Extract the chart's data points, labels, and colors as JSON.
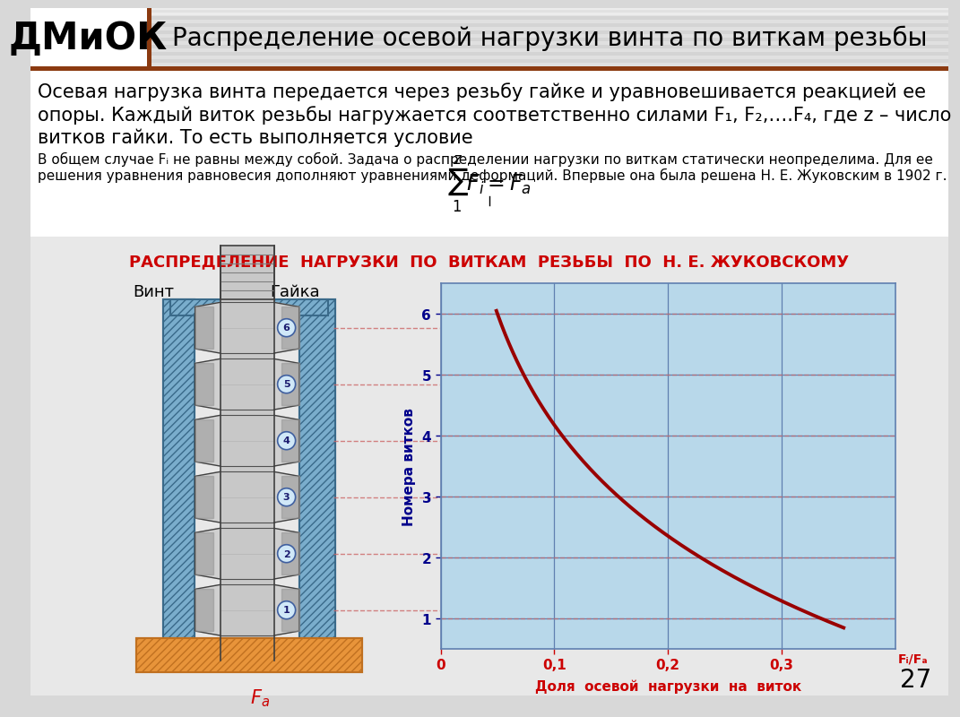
{
  "title_logo": "ДМиОК",
  "title_main": "Распределение осевой нагрузки винта по виткам резьбы",
  "text_large_line1": "Осевая нагрузка винта передается через резьбу гайке и уравновешивается реакцией ее",
  "text_large_line2": "опоры. Каждый виток резьбы нагружается соответственно силами F₁, F₂,….F₄, где z – число",
  "text_large_line3": "витков гайки. То есть выполняется условие",
  "text_small_line1": "В общем случае Fᵢ не равны между собой. Задача о распределении нагрузки по виткам статически неопределима. Для ее",
  "text_small_line2": "решения уравнения равновесия дополняют уравнениями деформаций. Впервые она была решена Н. Е. Жуковским в 1902 г.",
  "diagram_title": "РАСПРЕДЕЛЕНИЕ  НАГРУЗКИ  ПО  ВИТКАМ  РЕЗЬБЫ  ПО  Н. Е. ЖУКОВСКОМУ",
  "diagram_title_color": "#cc0000",
  "graph_bg": "#b8d8ea",
  "curve_color": "#990000",
  "xlabel": "Доля  осевой  нагрузки  на  виток",
  "ylabel": "Номера витков",
  "xlabel_color": "#cc0000",
  "xtick_color": "#cc0000",
  "ylabel_color": "#00008b",
  "ytick_color": "#00008b",
  "xlim": [
    0,
    0.4
  ],
  "ylim": [
    0.5,
    6.5
  ],
  "xticks": [
    0,
    0.1,
    0.2,
    0.3
  ],
  "yticks": [
    1,
    2,
    3,
    4,
    5,
    6
  ],
  "xlabel_extra": "Fᵢ/Fₐ",
  "grid_color": "#6080b0",
  "dashed_line_color": "#cc6666",
  "page_number": "27",
  "label_vint": "Винт",
  "label_gaika": "Гайка",
  "nut_color": "#7aadcc",
  "nut_hatch_color": "#5090b0",
  "screw_thread_light": "#d8d8d8",
  "screw_thread_dark": "#808080",
  "screw_body_color": "#c0c0c0",
  "base_color": "#e8943a",
  "base_edge_color": "#c07020",
  "circle_color": "#d0e8f8",
  "circle_edge": "#4060a0",
  "circle_text": "#1a1a6e",
  "arrow_color": "#cc0000",
  "num_threads": 6,
  "thread_numbers": [
    6,
    5,
    4,
    3,
    2,
    1
  ],
  "font_sizes": {
    "logo": 30,
    "title": 20,
    "text_large": 15,
    "text_small": 11,
    "diagram_title": 13,
    "axis_label": 11,
    "tick_label": 11,
    "page_num": 20,
    "label": 13
  }
}
